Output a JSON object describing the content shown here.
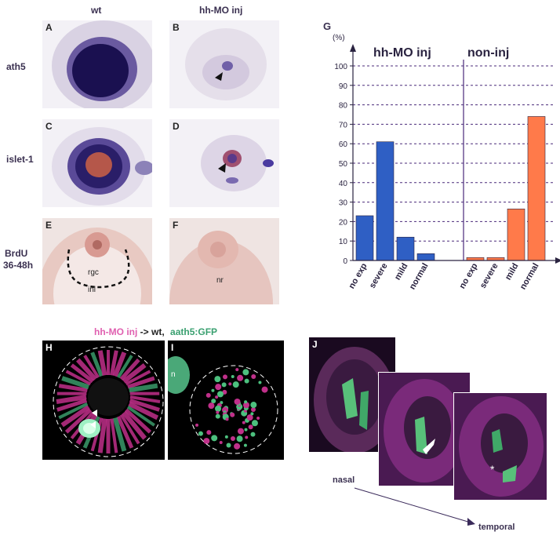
{
  "columns": {
    "wt": "wt",
    "hhmo": "hh-MO inj"
  },
  "rows": {
    "ath5": "ath5",
    "islet": "islet-1",
    "brdu1": "BrdU",
    "brdu2": "36-48h"
  },
  "panels": {
    "A": "A",
    "B": "B",
    "C": "C",
    "D": "D",
    "E": "E",
    "F": "F",
    "G": "G",
    "H": "H",
    "I": "I",
    "J": "J"
  },
  "annotations": {
    "rgc": "rgc",
    "inl": "inl",
    "nr": "nr",
    "n": "n"
  },
  "legend_h": {
    "part1": "hh-MO inj",
    "part2": " -> wt,",
    "part3": "aath5:GFP"
  },
  "orientation": {
    "nasal": "nasal",
    "temporal": "temporal"
  },
  "colors": {
    "blue_bar": "#2f5fc4",
    "orange_bar": "#ff7a4a",
    "magenta": "#d8338f",
    "green": "#58d08a",
    "grid": "#4a2a7a"
  },
  "chart_data": {
    "type": "bar",
    "ylabel": "(%)",
    "ylim": [
      0,
      100
    ],
    "yticks": [
      0,
      10,
      20,
      30,
      40,
      50,
      60,
      70,
      80,
      90,
      100
    ],
    "grid": "dashed horizontal",
    "categories": [
      "no exp",
      "severe",
      "mild",
      "normal"
    ],
    "series": [
      {
        "name": "hh-MO inj",
        "color": "#2f5fc4",
        "values": [
          23,
          61,
          12,
          3.5
        ]
      },
      {
        "name": "non-inj",
        "color": "#ff7a4a",
        "values": [
          1.5,
          1.5,
          26.5,
          74
        ]
      }
    ]
  }
}
